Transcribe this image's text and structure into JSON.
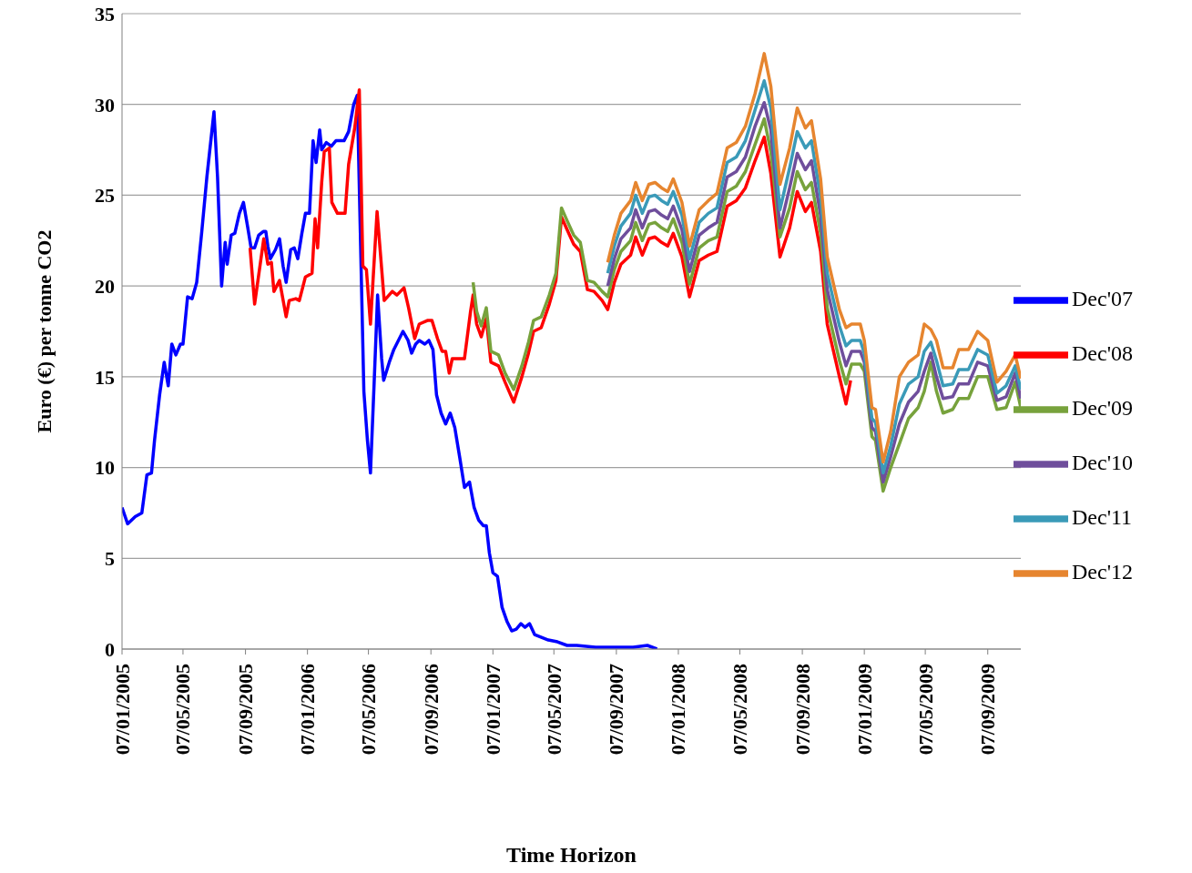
{
  "chart_data": {
    "type": "line",
    "xlabel": "Time Horizon",
    "ylabel": "Euro (€) per tonne CO2",
    "xlim": [
      "2005-01-07",
      "2009-11-11"
    ],
    "xticks": [
      {
        "value": "2005-01-07",
        "label": "07/01/2005"
      },
      {
        "value": "2005-05-07",
        "label": "07/05/2005"
      },
      {
        "value": "2005-09-07",
        "label": "07/09/2005"
      },
      {
        "value": "2006-01-07",
        "label": "07/01/2006"
      },
      {
        "value": "2006-05-07",
        "label": "07/05/2006"
      },
      {
        "value": "2006-09-07",
        "label": "07/09/2006"
      },
      {
        "value": "2007-01-07",
        "label": "07/01/2007"
      },
      {
        "value": "2007-05-07",
        "label": "07/05/2007"
      },
      {
        "value": "2007-09-07",
        "label": "07/09/2007"
      },
      {
        "value": "2008-01-07",
        "label": "07/01/2008"
      },
      {
        "value": "2008-05-07",
        "label": "07/05/2008"
      },
      {
        "value": "2008-09-07",
        "label": "07/09/2008"
      },
      {
        "value": "2009-01-07",
        "label": "07/01/2009"
      },
      {
        "value": "2009-05-07",
        "label": "07/05/2009"
      },
      {
        "value": "2009-09-07",
        "label": "07/09/2009"
      }
    ],
    "ylim": [
      0,
      35
    ],
    "yticks": [
      0,
      5,
      10,
      15,
      20,
      25,
      30,
      35
    ],
    "grid": "y",
    "legend": "right",
    "line_style": "solid",
    "series": [
      {
        "name": "Dec'07",
        "color": "#0000ff",
        "x": [
          "2005-01-07",
          "2005-01-18",
          "2005-02-02",
          "2005-02-15",
          "2005-02-25",
          "2005-03-06",
          "2005-03-12",
          "2005-03-22",
          "2005-03-31",
          "2005-04-08",
          "2005-04-15",
          "2005-04-23",
          "2005-05-02",
          "2005-05-07",
          "2005-05-16",
          "2005-05-25",
          "2005-06-03",
          "2005-06-13",
          "2005-06-23",
          "2005-07-07",
          "2005-07-14",
          "2005-07-22",
          "2005-07-29",
          "2005-08-02",
          "2005-08-10",
          "2005-08-17",
          "2005-08-26",
          "2005-09-03",
          "2005-09-11",
          "2005-09-18",
          "2005-09-25",
          "2005-10-03",
          "2005-10-12",
          "2005-10-17",
          "2005-10-21",
          "2005-10-26",
          "2005-11-05",
          "2005-11-13",
          "2005-11-20",
          "2005-11-26",
          "2005-12-05",
          "2005-12-12",
          "2005-12-19",
          "2005-12-27",
          "2006-01-03",
          "2006-01-11",
          "2006-01-18",
          "2006-01-24",
          "2006-01-31",
          "2006-02-04",
          "2006-02-13",
          "2006-02-23",
          "2006-03-04",
          "2006-03-20",
          "2006-03-29",
          "2006-04-08",
          "2006-04-15",
          "2006-04-28",
          "2006-05-05",
          "2006-05-11",
          "2006-05-18",
          "2006-05-25",
          "2006-06-02",
          "2006-06-06",
          "2006-06-17",
          "2006-06-26",
          "2006-07-05",
          "2006-07-14",
          "2006-07-24",
          "2006-07-31",
          "2006-08-08",
          "2006-08-15",
          "2006-08-26",
          "2006-09-03",
          "2006-09-11",
          "2006-09-18",
          "2006-09-27",
          "2006-10-06",
          "2006-10-15",
          "2006-10-24",
          "2006-11-03",
          "2006-11-12",
          "2006-11-22",
          "2006-12-01",
          "2006-12-10",
          "2006-12-19",
          "2006-12-25",
          "2006-12-31",
          "2007-01-07",
          "2007-01-16",
          "2007-01-25",
          "2007-02-04",
          "2007-02-13",
          "2007-02-22",
          "2007-03-03",
          "2007-03-11",
          "2007-03-20",
          "2007-03-30",
          "2007-04-08",
          "2007-04-26",
          "2007-05-14",
          "2007-06-02",
          "2007-06-21",
          "2007-07-28",
          "2007-09-03",
          "2007-10-10",
          "2007-11-07",
          "2007-11-26"
        ],
        "values": [
          7.8,
          6.9,
          7.3,
          7.5,
          9.6,
          9.7,
          11.5,
          14,
          15.8,
          14.5,
          16.8,
          16.2,
          16.8,
          16.8,
          19.4,
          19.3,
          20.2,
          23,
          26,
          29.6,
          26,
          20,
          22.4,
          21.2,
          22.8,
          22.9,
          24,
          24.6,
          23.3,
          22.1,
          22.1,
          22.8,
          23,
          23,
          22.2,
          21.5,
          22,
          22.6,
          21.1,
          20.2,
          22,
          22.1,
          21.5,
          22.9,
          24,
          24,
          28,
          26.8,
          28.6,
          27.5,
          27.9,
          27.7,
          28,
          28,
          28.5,
          30,
          30.5,
          14.2,
          11.5,
          9.7,
          14.5,
          19.5,
          16,
          14.8,
          15.8,
          16.5,
          17,
          17.5,
          17,
          16.3,
          16.8,
          17,
          16.8,
          17,
          16.5,
          14,
          13,
          12.4,
          13,
          12.2,
          10.5,
          8.9,
          9.2,
          7.8,
          7.1,
          6.8,
          6.8,
          5.3,
          4.2,
          4,
          2.3,
          1.5,
          1,
          1.1,
          1.4,
          1.2,
          1.4,
          0.8,
          0.7,
          0.5,
          0.4,
          0.2,
          0.2,
          0.1,
          0.1,
          0.1,
          0.2,
          0
        ]
      },
      {
        "name": "Dec'08",
        "color": "#ff0000",
        "x": [
          "2005-09-16",
          "2005-09-25",
          "2005-10-13",
          "2005-10-21",
          "2005-10-28",
          "2005-11-02",
          "2005-11-13",
          "2005-11-26",
          "2005-12-02",
          "2005-12-15",
          "2005-12-22",
          "2006-01-03",
          "2006-01-16",
          "2006-01-22",
          "2006-01-27",
          "2006-02-04",
          "2006-02-09",
          "2006-02-19",
          "2006-02-24",
          "2006-03-07",
          "2006-03-22",
          "2006-03-29",
          "2006-04-10",
          "2006-04-19",
          "2006-04-26",
          "2006-05-03",
          "2006-05-11",
          "2006-05-24",
          "2006-06-07",
          "2006-06-23",
          "2006-07-02",
          "2006-07-16",
          "2006-07-25",
          "2006-08-06",
          "2006-08-15",
          "2006-08-31",
          "2006-09-09",
          "2006-09-20",
          "2006-09-29",
          "2006-10-06",
          "2006-10-13",
          "2006-10-19",
          "2006-11-12",
          "2006-11-24",
          "2006-11-29",
          "2006-12-06",
          "2006-12-15",
          "2006-12-25",
          "2007-01-03",
          "2007-01-18",
          "2007-01-31",
          "2007-02-17",
          "2007-03-05",
          "2007-03-18",
          "2007-03-28",
          "2007-04-12",
          "2007-04-28",
          "2007-05-11",
          "2007-05-22",
          "2007-06-02",
          "2007-06-15",
          "2007-06-28",
          "2007-07-12",
          "2007-07-25",
          "2007-08-10",
          "2007-08-21",
          "2007-09-03",
          "2007-09-16",
          "2007-10-05",
          "2007-10-15",
          "2007-10-28",
          "2007-11-10",
          "2007-11-22",
          "2007-12-05",
          "2007-12-17",
          "2007-12-28",
          "2008-01-14",
          "2008-01-29",
          "2008-02-17",
          "2008-03-06",
          "2008-03-23",
          "2008-04-12",
          "2008-04-30",
          "2008-05-18",
          "2008-06-06",
          "2008-06-24",
          "2008-07-07",
          "2008-07-25",
          "2008-08-13",
          "2008-08-28",
          "2008-09-13",
          "2008-09-25",
          "2008-10-13",
          "2008-10-26",
          "2008-11-19",
          "2008-12-02",
          "2008-12-11"
        ],
        "values": [
          22.1,
          19.0,
          22.6,
          21.2,
          21.3,
          19.7,
          20.3,
          18.3,
          19.2,
          19.3,
          19.2,
          20.5,
          20.7,
          23.7,
          22.1,
          25.7,
          27.4,
          27.6,
          24.6,
          24.0,
          24.0,
          26.7,
          28.7,
          30.8,
          21.1,
          20.9,
          17.9,
          24.1,
          19.2,
          19.7,
          19.5,
          19.9,
          18.8,
          17.1,
          17.9,
          18.1,
          18.1,
          17.1,
          16.4,
          16.4,
          15.2,
          16.0,
          16.0,
          18.6,
          19.5,
          17.9,
          17.2,
          18.2,
          15.8,
          15.6,
          14.7,
          13.6,
          15.0,
          16.3,
          17.5,
          17.7,
          19.0,
          20.3,
          23.8,
          23.1,
          22.3,
          21.9,
          19.8,
          19.7,
          19.2,
          18.7,
          20.2,
          21.2,
          21.7,
          22.7,
          21.7,
          22.6,
          22.7,
          22.4,
          22.2,
          22.9,
          21.6,
          19.4,
          21.4,
          21.7,
          21.9,
          24.4,
          24.7,
          25.4,
          26.9,
          28.2,
          26.2,
          21.6,
          23.2,
          25.2,
          24.1,
          24.6,
          21.9,
          17.9,
          15.0,
          13.5,
          14.8
        ]
      },
      {
        "name": "Dec'09",
        "color": "#77a23c",
        "x": [
          "2006-11-29",
          "2006-12-06",
          "2006-12-15",
          "2006-12-25",
          "2007-01-03",
          "2007-01-18",
          "2007-01-31",
          "2007-02-17",
          "2007-03-05",
          "2007-03-18",
          "2007-03-28",
          "2007-04-12",
          "2007-04-28",
          "2007-05-11",
          "2007-05-22",
          "2007-06-02",
          "2007-06-15",
          "2007-06-28",
          "2007-07-12",
          "2007-07-25",
          "2007-08-10",
          "2007-08-21",
          "2007-09-03",
          "2007-09-16",
          "2007-10-05",
          "2007-10-15",
          "2007-10-28",
          "2007-11-10",
          "2007-11-22",
          "2007-12-05",
          "2007-12-17",
          "2007-12-28",
          "2008-01-14",
          "2008-01-29",
          "2008-02-17",
          "2008-03-06",
          "2008-03-23",
          "2008-04-12",
          "2008-04-30",
          "2008-05-18",
          "2008-06-06",
          "2008-06-24",
          "2008-07-07",
          "2008-07-25",
          "2008-08-13",
          "2008-08-28",
          "2008-09-13",
          "2008-09-25",
          "2008-10-13",
          "2008-10-26",
          "2008-11-19",
          "2008-12-02",
          "2008-12-13",
          "2008-12-30",
          "2009-01-07",
          "2009-01-22",
          "2009-01-29",
          "2009-02-13",
          "2009-02-28",
          "2009-03-17",
          "2009-04-04",
          "2009-04-23",
          "2009-05-05",
          "2009-05-18",
          "2009-05-29",
          "2009-06-11",
          "2009-06-30",
          "2009-07-12",
          "2009-07-31",
          "2009-08-18",
          "2009-09-07",
          "2009-09-25",
          "2009-10-13",
          "2009-10-31",
          "2009-11-11"
        ],
        "values": [
          20.2,
          18.6,
          17.8,
          18.8,
          16.4,
          16.2,
          15.2,
          14.3,
          15.6,
          16.9,
          18.1,
          18.3,
          19.5,
          20.7,
          24.3,
          23.6,
          22.8,
          22.4,
          20.3,
          20.2,
          19.7,
          19.4,
          20.9,
          21.9,
          22.5,
          23.5,
          22.5,
          23.4,
          23.5,
          23.2,
          23.0,
          23.7,
          22.4,
          20.1,
          22.1,
          22.5,
          22.7,
          25.2,
          25.5,
          26.3,
          27.8,
          29.2,
          27.4,
          22.7,
          24.3,
          26.3,
          25.3,
          25.7,
          22.9,
          18.8,
          15.9,
          14.6,
          15.7,
          15.7,
          15.3,
          11.7,
          11.5,
          8.7,
          10.0,
          11.3,
          12.7,
          13.3,
          14.2,
          15.8,
          14.2,
          13.0,
          13.2,
          13.8,
          13.8,
          15.0,
          15.0,
          13.2,
          13.3,
          14.7,
          13.3
        ]
      },
      {
        "name": "Dec'10",
        "color": "#6f4e9c",
        "x": [
          "2007-08-21",
          "2007-09-03",
          "2007-09-16",
          "2007-10-05",
          "2007-10-15",
          "2007-10-28",
          "2007-11-10",
          "2007-11-22",
          "2007-12-05",
          "2007-12-17",
          "2007-12-28",
          "2008-01-14",
          "2008-01-29",
          "2008-02-17",
          "2008-03-06",
          "2008-03-23",
          "2008-04-12",
          "2008-04-30",
          "2008-05-18",
          "2008-06-06",
          "2008-06-24",
          "2008-07-07",
          "2008-07-25",
          "2008-08-13",
          "2008-08-28",
          "2008-09-13",
          "2008-09-25",
          "2008-10-13",
          "2008-10-26",
          "2008-11-19",
          "2008-12-02",
          "2008-12-13",
          "2008-12-30",
          "2009-01-07",
          "2009-01-22",
          "2009-01-29",
          "2009-02-13",
          "2009-02-28",
          "2009-03-17",
          "2009-04-04",
          "2009-04-23",
          "2009-05-05",
          "2009-05-18",
          "2009-05-29",
          "2009-06-11",
          "2009-06-30",
          "2009-07-12",
          "2009-07-31",
          "2009-08-18",
          "2009-09-07",
          "2009-09-25",
          "2009-10-13",
          "2009-10-31",
          "2009-11-11"
        ],
        "values": [
          20.0,
          21.5,
          22.6,
          23.2,
          24.2,
          23.2,
          24.1,
          24.2,
          23.9,
          23.7,
          24.4,
          23.1,
          20.8,
          22.8,
          23.2,
          23.5,
          26.0,
          26.3,
          27.1,
          28.8,
          30.1,
          28.6,
          23.2,
          25.4,
          27.3,
          26.4,
          26.9,
          23.9,
          19.8,
          16.9,
          15.6,
          16.4,
          16.4,
          15.8,
          12.2,
          12.0,
          9.2,
          10.6,
          12.4,
          13.6,
          14.2,
          15.3,
          16.3,
          15.0,
          13.8,
          13.9,
          14.6,
          14.6,
          15.8,
          15.6,
          13.7,
          13.9,
          15.2,
          13.8
        ]
      },
      {
        "name": "Dec'11",
        "color": "#3a9ab8",
        "x": [
          "2007-08-21",
          "2007-09-03",
          "2007-09-16",
          "2007-10-05",
          "2007-10-15",
          "2007-10-28",
          "2007-11-10",
          "2007-11-22",
          "2007-12-05",
          "2007-12-17",
          "2007-12-28",
          "2008-01-14",
          "2008-01-29",
          "2008-02-17",
          "2008-03-06",
          "2008-03-23",
          "2008-04-12",
          "2008-04-30",
          "2008-05-18",
          "2008-06-06",
          "2008-06-24",
          "2008-07-07",
          "2008-07-25",
          "2008-08-13",
          "2008-08-28",
          "2008-09-13",
          "2008-09-25",
          "2008-10-13",
          "2008-10-26",
          "2008-11-19",
          "2008-12-02",
          "2008-12-13",
          "2008-12-30",
          "2009-01-07",
          "2009-01-22",
          "2009-01-29",
          "2009-02-13",
          "2009-02-28",
          "2009-03-17",
          "2009-04-04",
          "2009-04-23",
          "2009-05-05",
          "2009-05-18",
          "2009-05-29",
          "2009-06-11",
          "2009-06-30",
          "2009-07-12",
          "2009-07-31",
          "2009-08-18",
          "2009-09-07",
          "2009-09-25",
          "2009-10-13",
          "2009-10-31",
          "2009-11-11"
        ],
        "values": [
          20.7,
          22.2,
          23.3,
          24.0,
          25.0,
          24.0,
          24.9,
          25.0,
          24.7,
          24.5,
          25.2,
          23.9,
          21.5,
          23.5,
          24.0,
          24.3,
          26.8,
          27.1,
          28.0,
          29.7,
          31.3,
          29.8,
          24.2,
          26.5,
          28.5,
          27.6,
          28.0,
          24.9,
          20.7,
          17.8,
          16.7,
          17.0,
          17.0,
          16.3,
          12.7,
          12.5,
          9.7,
          11.2,
          13.5,
          14.6,
          15.0,
          16.4,
          16.9,
          15.9,
          14.5,
          14.6,
          15.4,
          15.4,
          16.5,
          16.2,
          14.1,
          14.5,
          15.6,
          14.3
        ]
      },
      {
        "name": "Dec'12",
        "color": "#e6852f",
        "x": [
          "2007-08-21",
          "2007-09-03",
          "2007-09-16",
          "2007-10-05",
          "2007-10-15",
          "2007-10-28",
          "2007-11-10",
          "2007-11-22",
          "2007-12-05",
          "2007-12-17",
          "2007-12-28",
          "2008-01-14",
          "2008-01-29",
          "2008-02-17",
          "2008-03-06",
          "2008-03-23",
          "2008-04-12",
          "2008-04-30",
          "2008-05-18",
          "2008-06-06",
          "2008-06-24",
          "2008-07-07",
          "2008-07-25",
          "2008-08-13",
          "2008-08-28",
          "2008-09-13",
          "2008-09-25",
          "2008-10-13",
          "2008-10-26",
          "2008-11-19",
          "2008-12-02",
          "2008-12-13",
          "2008-12-30",
          "2009-01-07",
          "2009-01-22",
          "2009-01-29",
          "2009-02-13",
          "2009-02-28",
          "2009-03-17",
          "2009-04-04",
          "2009-04-23",
          "2009-05-05",
          "2009-05-18",
          "2009-05-29",
          "2009-06-11",
          "2009-06-30",
          "2009-07-12",
          "2009-07-31",
          "2009-08-18",
          "2009-09-07",
          "2009-09-25",
          "2009-10-13",
          "2009-10-31",
          "2009-11-11"
        ],
        "values": [
          21.3,
          22.8,
          24.0,
          24.7,
          25.7,
          24.7,
          25.6,
          25.7,
          25.4,
          25.2,
          25.9,
          24.6,
          22.2,
          24.2,
          24.7,
          25.1,
          27.6,
          27.9,
          28.8,
          30.6,
          32.8,
          31.0,
          25.6,
          27.6,
          29.8,
          28.7,
          29.1,
          25.9,
          21.6,
          18.7,
          17.7,
          17.9,
          17.9,
          17.0,
          13.3,
          13.2,
          10.3,
          12.0,
          15.0,
          15.8,
          16.2,
          17.9,
          17.6,
          17.0,
          15.5,
          15.5,
          16.5,
          16.5,
          17.5,
          17.0,
          14.7,
          15.3,
          16.2,
          14.9
        ]
      }
    ]
  }
}
